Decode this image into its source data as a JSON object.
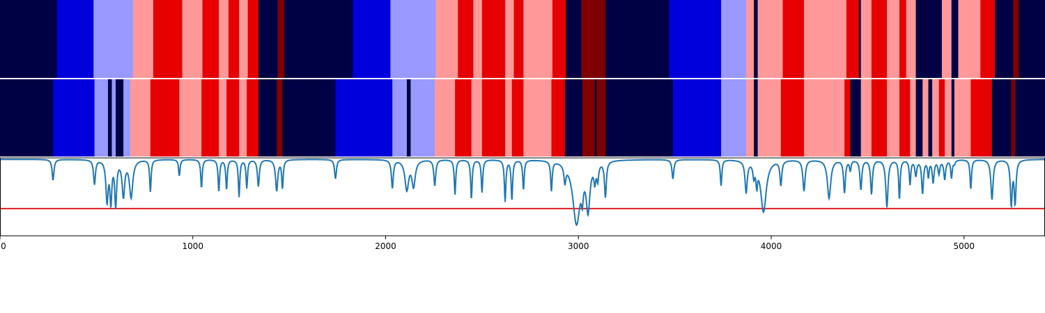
{
  "colors": {
    "c0": "#000044",
    "c1": "#0000dd",
    "c2": "#9999ff",
    "c3": "#ff9999",
    "c4": "#e60000",
    "c5": "#7f0000",
    "line": "#1f77b4",
    "threshold": "#e31a1c"
  },
  "chart_data": {
    "type": "segmentation-bands-and-line",
    "xlim": [
      0,
      5420
    ],
    "x_ticks": [
      0,
      1000,
      2000,
      3000,
      4000,
      5000
    ],
    "x_tick_labels": [
      "0",
      "1000",
      "2000",
      "3000",
      "4000",
      "5000"
    ],
    "threshold_y": 0.32,
    "line_ylim": [
      0,
      1
    ],
    "band_rows": [
      {
        "segments": [
          [
            0,
            295,
            "c0"
          ],
          [
            295,
            485,
            "c1"
          ],
          [
            485,
            690,
            "c2"
          ],
          [
            690,
            795,
            "c3"
          ],
          [
            795,
            945,
            "c4"
          ],
          [
            945,
            1050,
            "c3"
          ],
          [
            1050,
            1135,
            "c4"
          ],
          [
            1135,
            1185,
            "c3"
          ],
          [
            1185,
            1240,
            "c4"
          ],
          [
            1240,
            1285,
            "c3"
          ],
          [
            1285,
            1340,
            "c4"
          ],
          [
            1340,
            1440,
            "c0"
          ],
          [
            1440,
            1475,
            "c5"
          ],
          [
            1475,
            1830,
            "c0"
          ],
          [
            1830,
            2025,
            "c1"
          ],
          [
            2025,
            2260,
            "c2"
          ],
          [
            2260,
            2375,
            "c3"
          ],
          [
            2375,
            2455,
            "c4"
          ],
          [
            2455,
            2500,
            "c3"
          ],
          [
            2500,
            2620,
            "c4"
          ],
          [
            2620,
            2665,
            "c3"
          ],
          [
            2665,
            2715,
            "c4"
          ],
          [
            2715,
            2865,
            "c3"
          ],
          [
            2865,
            2935,
            "c4"
          ],
          [
            2935,
            3015,
            "c0"
          ],
          [
            3015,
            3140,
            "c5"
          ],
          [
            3140,
            3470,
            "c0"
          ],
          [
            3470,
            3740,
            "c1"
          ],
          [
            3740,
            3870,
            "c2"
          ],
          [
            3870,
            3910,
            "c3"
          ],
          [
            3910,
            3930,
            "c0"
          ],
          [
            3930,
            4060,
            "c3"
          ],
          [
            4060,
            4170,
            "c4"
          ],
          [
            4170,
            4390,
            "c3"
          ],
          [
            4390,
            4455,
            "c4"
          ],
          [
            4455,
            4465,
            "c0"
          ],
          [
            4465,
            4520,
            "c3"
          ],
          [
            4520,
            4600,
            "c4"
          ],
          [
            4600,
            4665,
            "c3"
          ],
          [
            4665,
            4700,
            "c4"
          ],
          [
            4700,
            4750,
            "c3"
          ],
          [
            4750,
            4885,
            "c0"
          ],
          [
            4885,
            4935,
            "c3"
          ],
          [
            4935,
            4970,
            "c0"
          ],
          [
            4970,
            5085,
            "c3"
          ],
          [
            5085,
            5160,
            "c4"
          ],
          [
            5160,
            5255,
            "c0"
          ],
          [
            5255,
            5285,
            "c5"
          ],
          [
            5285,
            5420,
            "c0"
          ]
        ]
      },
      {
        "segments": [
          [
            0,
            275,
            "c0"
          ],
          [
            275,
            490,
            "c1"
          ],
          [
            490,
            560,
            "c2"
          ],
          [
            560,
            580,
            "c0"
          ],
          [
            580,
            600,
            "c2"
          ],
          [
            600,
            640,
            "c0"
          ],
          [
            640,
            675,
            "c2"
          ],
          [
            675,
            780,
            "c3"
          ],
          [
            780,
            930,
            "c4"
          ],
          [
            930,
            1045,
            "c3"
          ],
          [
            1045,
            1135,
            "c4"
          ],
          [
            1135,
            1175,
            "c3"
          ],
          [
            1175,
            1240,
            "c4"
          ],
          [
            1240,
            1280,
            "c3"
          ],
          [
            1280,
            1340,
            "c4"
          ],
          [
            1340,
            1435,
            "c0"
          ],
          [
            1435,
            1465,
            "c5"
          ],
          [
            1465,
            1740,
            "c0"
          ],
          [
            1740,
            2035,
            "c1"
          ],
          [
            2035,
            2110,
            "c2"
          ],
          [
            2110,
            2130,
            "c0"
          ],
          [
            2130,
            2255,
            "c2"
          ],
          [
            2255,
            2360,
            "c3"
          ],
          [
            2360,
            2445,
            "c4"
          ],
          [
            2445,
            2500,
            "c3"
          ],
          [
            2500,
            2620,
            "c4"
          ],
          [
            2620,
            2655,
            "c3"
          ],
          [
            2655,
            2715,
            "c4"
          ],
          [
            2715,
            2860,
            "c3"
          ],
          [
            2860,
            2930,
            "c4"
          ],
          [
            2930,
            3020,
            "c0"
          ],
          [
            3020,
            3085,
            "c5"
          ],
          [
            3085,
            3095,
            "c0"
          ],
          [
            3095,
            3140,
            "c5"
          ],
          [
            3140,
            3490,
            "c0"
          ],
          [
            3490,
            3740,
            "c1"
          ],
          [
            3740,
            3870,
            "c2"
          ],
          [
            3870,
            3910,
            "c3"
          ],
          [
            3910,
            3930,
            "c0"
          ],
          [
            3930,
            4050,
            "c3"
          ],
          [
            4050,
            4170,
            "c4"
          ],
          [
            4170,
            4380,
            "c3"
          ],
          [
            4380,
            4410,
            "c4"
          ],
          [
            4410,
            4465,
            "c0"
          ],
          [
            4465,
            4520,
            "c3"
          ],
          [
            4520,
            4600,
            "c4"
          ],
          [
            4600,
            4665,
            "c3"
          ],
          [
            4665,
            4720,
            "c4"
          ],
          [
            4720,
            4750,
            "c3"
          ],
          [
            4750,
            4785,
            "c0"
          ],
          [
            4785,
            4815,
            "c3"
          ],
          [
            4815,
            4835,
            "c0"
          ],
          [
            4835,
            4870,
            "c3"
          ],
          [
            4870,
            4900,
            "c4"
          ],
          [
            4900,
            4935,
            "c3"
          ],
          [
            4935,
            4950,
            "c0"
          ],
          [
            4950,
            5035,
            "c3"
          ],
          [
            5035,
            5145,
            "c4"
          ],
          [
            5145,
            5245,
            "c0"
          ],
          [
            5245,
            5265,
            "c5"
          ],
          [
            5265,
            5420,
            "c0"
          ]
        ]
      }
    ],
    "line_dips": [
      [
        275,
        0.72,
        10
      ],
      [
        490,
        0.67,
        10
      ],
      [
        555,
        0.45,
        12
      ],
      [
        575,
        0.45,
        10
      ],
      [
        600,
        0.4,
        10
      ],
      [
        640,
        0.52,
        14
      ],
      [
        680,
        0.5,
        18
      ],
      [
        780,
        0.57,
        8
      ],
      [
        930,
        0.78,
        8
      ],
      [
        1045,
        0.62,
        8
      ],
      [
        1135,
        0.57,
        8
      ],
      [
        1175,
        0.6,
        8
      ],
      [
        1240,
        0.5,
        8
      ],
      [
        1280,
        0.62,
        8
      ],
      [
        1340,
        0.64,
        10
      ],
      [
        1435,
        0.58,
        12
      ],
      [
        1465,
        0.62,
        8
      ],
      [
        1740,
        0.74,
        10
      ],
      [
        2035,
        0.62,
        10
      ],
      [
        2110,
        0.6,
        20
      ],
      [
        2145,
        0.65,
        18
      ],
      [
        2255,
        0.65,
        10
      ],
      [
        2360,
        0.53,
        8
      ],
      [
        2445,
        0.47,
        8
      ],
      [
        2500,
        0.56,
        8
      ],
      [
        2620,
        0.44,
        8
      ],
      [
        2655,
        0.46,
        8
      ],
      [
        2715,
        0.6,
        8
      ],
      [
        2860,
        0.6,
        8
      ],
      [
        2930,
        0.77,
        10
      ],
      [
        2990,
        0.15,
        40
      ],
      [
        3020,
        0.72,
        10
      ],
      [
        3050,
        0.38,
        20
      ],
      [
        3085,
        0.77,
        10
      ],
      [
        3100,
        0.78,
        10
      ],
      [
        3140,
        0.52,
        10
      ],
      [
        3490,
        0.74,
        10
      ],
      [
        3740,
        0.65,
        8
      ],
      [
        3870,
        0.57,
        12
      ],
      [
        3910,
        0.82,
        10
      ],
      [
        3925,
        0.74,
        8
      ],
      [
        3960,
        0.3,
        30
      ],
      [
        4050,
        0.67,
        10
      ],
      [
        4170,
        0.58,
        12
      ],
      [
        4300,
        0.48,
        18
      ],
      [
        4380,
        0.56,
        10
      ],
      [
        4410,
        0.86,
        8
      ],
      [
        4465,
        0.6,
        10
      ],
      [
        4520,
        0.54,
        10
      ],
      [
        4600,
        0.36,
        12
      ],
      [
        4665,
        0.47,
        8
      ],
      [
        4720,
        0.67,
        8
      ],
      [
        4750,
        0.79,
        10
      ],
      [
        4785,
        0.55,
        10
      ],
      [
        4815,
        0.78,
        8
      ],
      [
        4840,
        0.7,
        10
      ],
      [
        4870,
        0.82,
        10
      ],
      [
        4900,
        0.74,
        10
      ],
      [
        4935,
        0.76,
        8
      ],
      [
        4950,
        0.95,
        10
      ],
      [
        5035,
        0.6,
        8
      ],
      [
        5145,
        0.46,
        12
      ],
      [
        5245,
        0.4,
        10
      ],
      [
        5265,
        0.42,
        10
      ]
    ]
  }
}
